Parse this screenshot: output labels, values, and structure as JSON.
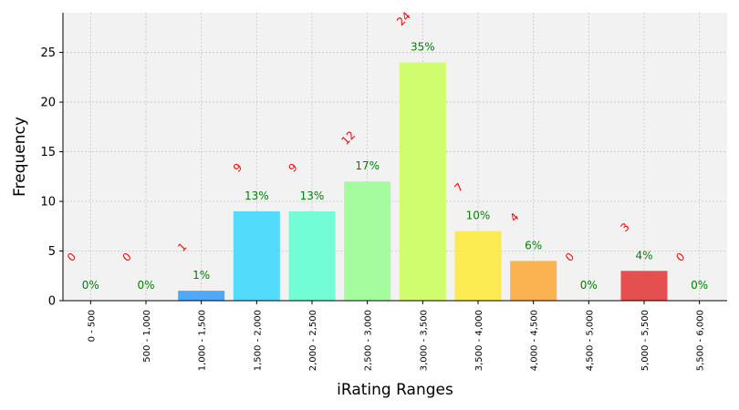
{
  "chart_data": {
    "type": "bar",
    "xlabel": "iRating Ranges",
    "ylabel": "Frequency",
    "ylim": [
      0,
      29
    ],
    "yticks": [
      0,
      5,
      10,
      15,
      20,
      25
    ],
    "grid": true,
    "categories": [
      "0 - 500",
      "500 - 1,000",
      "1,000 - 1,500",
      "1,500 - 2,000",
      "2,000 - 2,500",
      "2,500 - 3,000",
      "3,000 - 3,500",
      "3,500 - 4,000",
      "4,000 - 4,500",
      "4,500 - 5,000",
      "5,000 - 5,500",
      "5,500 - 6,000"
    ],
    "values": [
      0,
      0,
      1,
      9,
      9,
      12,
      24,
      7,
      4,
      0,
      3,
      0
    ],
    "percent_labels": [
      "0%",
      "0%",
      "1%",
      "13%",
      "13%",
      "17%",
      "35%",
      "10%",
      "6%",
      "0%",
      "4%",
      "0%"
    ],
    "bar_colors": [
      "#3f6ff5",
      "#3f90f8",
      "#45a4f9",
      "#4ad9fb",
      "#6bfdd4",
      "#9ffc9a",
      "#cdfd66",
      "#fce94a",
      "#fbae47",
      "#f2763e",
      "#e34646",
      "#b32a2a"
    ],
    "count_label_color": "#ff0000",
    "percent_label_color": "#008000"
  }
}
